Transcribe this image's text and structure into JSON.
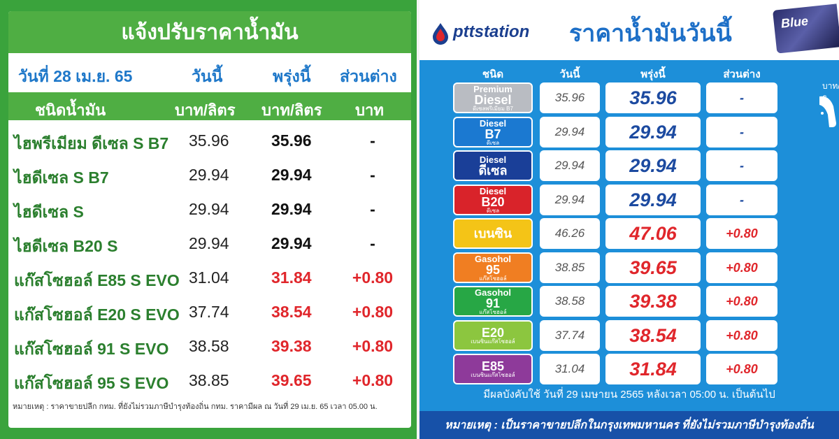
{
  "left": {
    "title": "แจ้งปรับราคาน้ำมัน",
    "date_label": "วันที่ 28 เม.ย. 65",
    "col_today": "วันนี้",
    "col_tomorrow": "พรุ่งนี้",
    "col_diff": "ส่วนต่าง",
    "col_name": "ชนิดน้ำมัน",
    "unit_today": "บาท/ลิตร",
    "unit_tomorrow": "บาท/ลิตร",
    "unit_diff": "บาท",
    "rows": [
      {
        "name": "ไฮพรีเมียม ดีเซล S B7",
        "today": "35.96",
        "tomorrow": "35.96",
        "diff": "-"
      },
      {
        "name": "ไฮดีเซล S B7",
        "today": "29.94",
        "tomorrow": "29.94",
        "diff": "-"
      },
      {
        "name": "ไฮดีเซล S",
        "today": "29.94",
        "tomorrow": "29.94",
        "diff": "-"
      },
      {
        "name": "ไฮดีเซล B20 S",
        "today": "29.94",
        "tomorrow": "29.94",
        "diff": "-"
      },
      {
        "name": "แก๊สโซฮอล์ E85 S EVO",
        "today": "31.04",
        "tomorrow": "31.84",
        "diff": "+0.80"
      },
      {
        "name": "แก๊สโซฮอล์ E20 S EVO",
        "today": "37.74",
        "tomorrow": "38.54",
        "diff": "+0.80"
      },
      {
        "name": "แก๊สโซฮอล์ 91 S EVO",
        "today": "38.58",
        "tomorrow": "39.38",
        "diff": "+0.80"
      },
      {
        "name": "แก๊สโซฮอล์ 95 S EVO",
        "today": "38.85",
        "tomorrow": "39.65",
        "diff": "+0.80"
      }
    ],
    "note": "หมายเหตุ : ราคาขายปลีก กทม. ที่ยังไม่รวมภาษีบำรุงท้องถิ่น กทม. ราคามีผล ณ วันที่ 29 เม.ย. 65 เวลา 05.00 น."
  },
  "right": {
    "brand": "pttstation",
    "title": "ราคาน้ำมันวันนี้",
    "card_text": "Blue",
    "col_type": "ชนิด",
    "col_today": "วันนี้",
    "col_tomorrow": "พรุ่งนี้",
    "col_diff": "ส่วนต่าง",
    "side_unit": "บาท/ลิ",
    "rows": [
      {
        "b1": "Premium",
        "b2": "Diesel",
        "b3": "ดีเซลพรีเมียม B7",
        "color": "#b9bcc2",
        "today": "35.96",
        "tomorrow": "35.96",
        "diff": "-"
      },
      {
        "b1": "Diesel",
        "b2": "B7",
        "b3": "ดีเซล",
        "color": "#1b79d1",
        "today": "29.94",
        "tomorrow": "29.94",
        "diff": "-"
      },
      {
        "b1": "Diesel",
        "b2": "ดีเซล",
        "b3": "",
        "color": "#1a3f98",
        "today": "29.94",
        "tomorrow": "29.94",
        "diff": "-"
      },
      {
        "b1": "Diesel",
        "b2": "B20",
        "b3": "ดีเซล",
        "color": "#d9232a",
        "today": "29.94",
        "tomorrow": "29.94",
        "diff": "-"
      },
      {
        "b1": "",
        "b2": "เบนซิน",
        "b3": "",
        "color": "#f4c417",
        "today": "46.26",
        "tomorrow": "47.06",
        "diff": "+0.80"
      },
      {
        "b1": "Gasohol",
        "b2": "95",
        "b3": "แก๊สโซฮอล์",
        "color": "#f07e22",
        "today": "38.85",
        "tomorrow": "39.65",
        "diff": "+0.80"
      },
      {
        "b1": "Gasohol",
        "b2": "91",
        "b3": "แก๊สโซฮอล์",
        "color": "#27a745",
        "today": "38.58",
        "tomorrow": "39.38",
        "diff": "+0.80"
      },
      {
        "b1": "",
        "b2": "E20",
        "b3": "เบนซินแก๊สโซฮอล์",
        "color": "#8cc63f",
        "today": "37.74",
        "tomorrow": "38.54",
        "diff": "+0.80"
      },
      {
        "b1": "",
        "b2": "E85",
        "b3": "เบนซินแก๊สโซฮอล์",
        "color": "#8e3a9a",
        "today": "31.04",
        "tomorrow": "31.84",
        "diff": "+0.80"
      }
    ],
    "effective": "มีผลบังคับใช้ วันที่ 29 เมษายน 2565 หลังเวลา 05:00 น. เป็นต้นไป",
    "note": "หมายเหตุ : เป็นราคาขายปลีกในกรุงเทพมหานคร ที่ยังไม่รวมภาษีบำรุงท้องถิ่น"
  }
}
